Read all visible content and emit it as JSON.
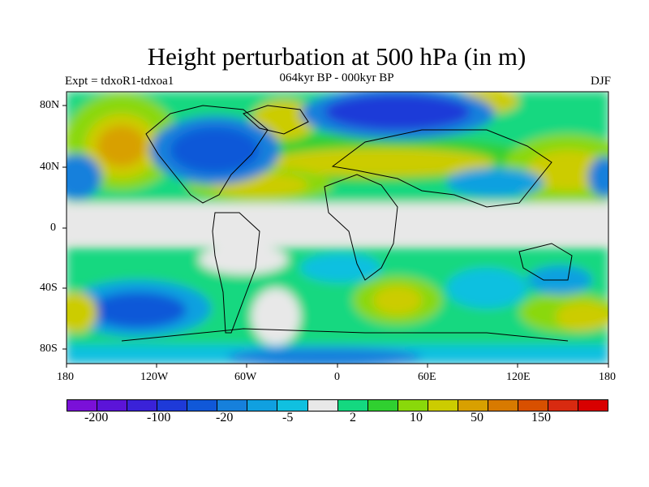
{
  "title": "Height perturbation at 500 hPa (in m)",
  "subtitle": "064kyr BP - 000kyr BP",
  "left_label": "Expt = tdxoR1-tdxoa1",
  "right_label": "DJF",
  "lat_labels": [
    "80N",
    "40N",
    "0",
    "40S",
    "80S"
  ],
  "lon_labels": [
    "180",
    "120W",
    "60W",
    "0",
    "60E",
    "120E",
    "180"
  ],
  "colorbar": {
    "colors": [
      "#7a10d8",
      "#5b14d8",
      "#3a22d8",
      "#1e3ad8",
      "#1058d8",
      "#1680dc",
      "#10a0e0",
      "#10c0e0",
      "#e8e8e8",
      "#14d880",
      "#30d030",
      "#8ad80a",
      "#cccc00",
      "#d8a000",
      "#d87a00",
      "#d85000",
      "#d82a10",
      "#d80000"
    ],
    "labels": [
      "-200",
      "-100",
      "-20",
      "-5",
      "2",
      "10",
      "50",
      "150"
    ]
  },
  "map_data": {
    "field": "500 hPa height perturbation",
    "season": "DJF",
    "regions": [
      {
        "name": "Greenland / N. Atlantic high-latitude",
        "sign": "negative",
        "max_magnitude": 150
      },
      {
        "name": "N. America east / Hudson Bay",
        "sign": "negative",
        "max_magnitude": 100
      },
      {
        "name": "Alaska / NE Pacific",
        "sign": "positive",
        "max_magnitude": 150
      },
      {
        "name": "Siberia / Arctic",
        "sign": "negative",
        "max_magnitude": 150
      },
      {
        "name": "Mid-latitude Eurasia",
        "sign": "positive",
        "max_magnitude": 50
      },
      {
        "name": "Mid-latitude N. Atlantic",
        "sign": "positive",
        "max_magnitude": 50
      },
      {
        "name": "Southern Ocean 130W",
        "sign": "negative",
        "max_magnitude": 100
      },
      {
        "name": "South Atlantic 40E",
        "sign": "positive",
        "max_magnitude": 50
      }
    ]
  }
}
